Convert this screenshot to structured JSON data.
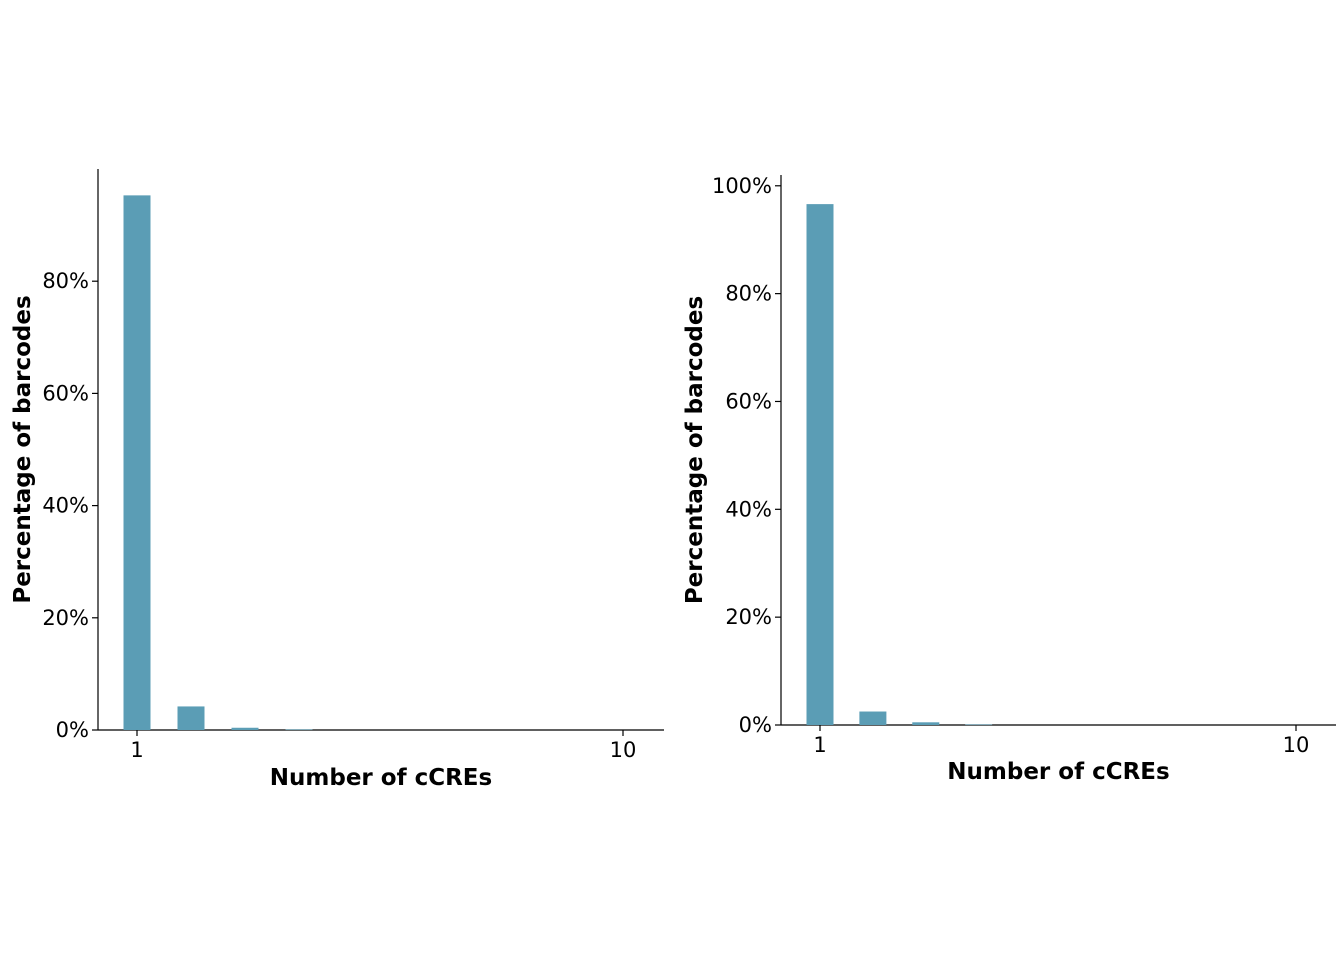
{
  "colors": {
    "bar": "#5b9db5"
  },
  "chart_data": [
    {
      "type": "bar",
      "x": [
        1,
        2,
        3,
        4
      ],
      "values": [
        95.3,
        4.2,
        0.4,
        0.1
      ],
      "xlabel": "Number of cCREs",
      "ylabel": "Percentage of barcodes",
      "xticks": [
        "1",
        "10"
      ],
      "xtick_values": [
        1,
        10
      ],
      "yticks": [
        "0%",
        "20%",
        "40%",
        "60%",
        "80%"
      ],
      "ytick_values": [
        0,
        20,
        40,
        60,
        80
      ],
      "ylim": [
        0,
        100
      ],
      "grid": false,
      "legend": "none"
    },
    {
      "type": "bar",
      "x": [
        1,
        2,
        3,
        4
      ],
      "values": [
        96.6,
        2.5,
        0.5,
        0.1
      ],
      "xlabel": "Number of cCREs",
      "ylabel": "Percentage of barcodes",
      "xticks": [
        "1",
        "10"
      ],
      "xtick_values": [
        1,
        10
      ],
      "yticks": [
        "0%",
        "20%",
        "40%",
        "60%",
        "80%",
        "100%"
      ],
      "ytick_values": [
        0,
        20,
        40,
        60,
        80,
        100
      ],
      "ylim": [
        0,
        102
      ],
      "grid": false,
      "legend": "none"
    }
  ]
}
